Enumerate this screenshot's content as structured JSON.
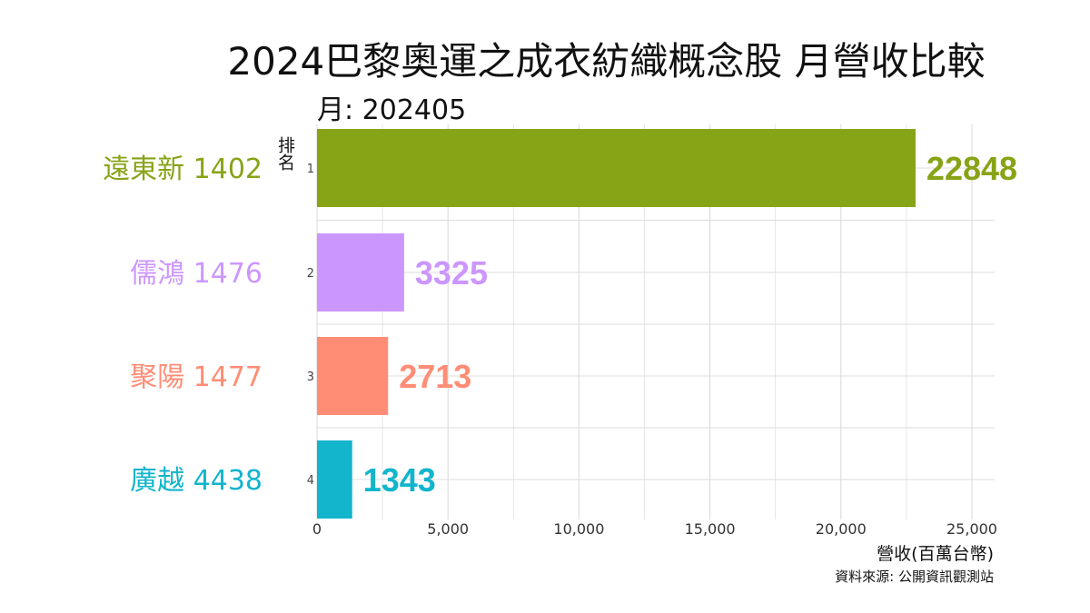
{
  "chart_data": {
    "type": "bar",
    "orientation": "horizontal",
    "title": "2024巴黎奧運之成衣紡織概念股 月營收比較",
    "subtitle": "月: 202405",
    "xlabel": "營收(百萬台幣)",
    "ylabel": "排名",
    "caption": "資料來源: 公開資訊觀測站",
    "xlim": [
      0,
      25000
    ],
    "xticks": [
      0,
      5000,
      10000,
      15000,
      20000,
      25000
    ],
    "xtick_labels": [
      "0",
      "5,000",
      "10,000",
      "15,000",
      "20,000",
      "25,000"
    ],
    "grid": true,
    "bars": [
      {
        "rank": "1",
        "label": "遠東新 1402",
        "value": 22848,
        "value_label": "22848",
        "color": "#87A316"
      },
      {
        "rank": "2",
        "label": "儒鴻 1476",
        "value": 3325,
        "value_label": "3325",
        "color": "#CC96FF"
      },
      {
        "rank": "3",
        "label": "聚陽 1477",
        "value": 2713,
        "value_label": "2713",
        "color": "#FF8D75"
      },
      {
        "rank": "4",
        "label": "廣越 4438",
        "value": 1343,
        "value_label": "1343",
        "color": "#12B5CB"
      }
    ]
  }
}
